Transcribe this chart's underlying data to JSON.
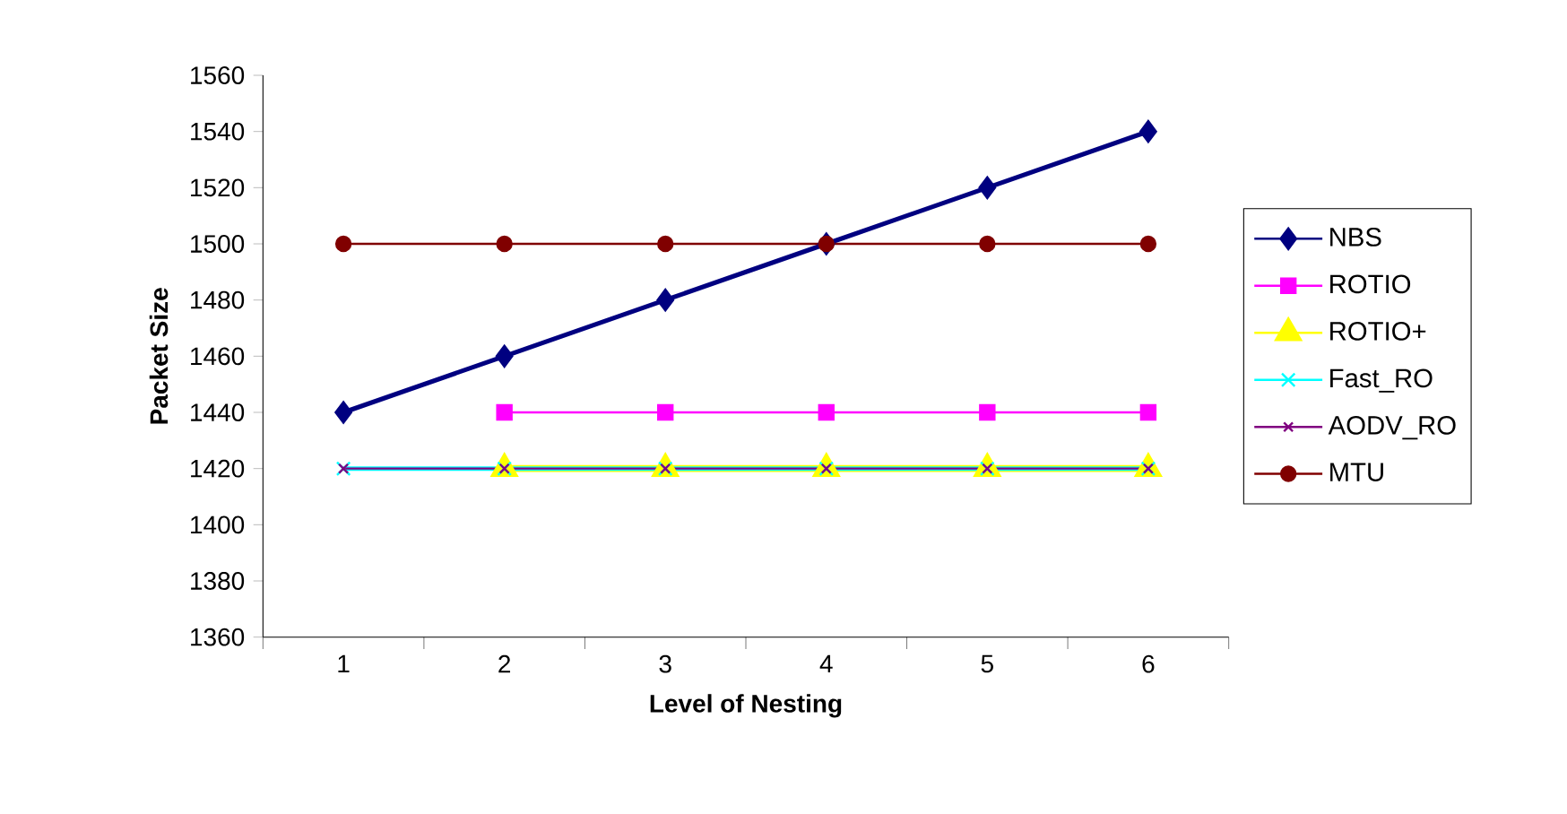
{
  "chart_data": {
    "type": "line",
    "xlabel": "Level of Nesting",
    "ylabel": "Packet Size",
    "categories": [
      "1",
      "2",
      "3",
      "4",
      "5",
      "6"
    ],
    "series": [
      {
        "name": "NBS",
        "color": "#000080",
        "marker": "diamond",
        "values": [
          1440,
          1460,
          1480,
          1500,
          1520,
          1540
        ]
      },
      {
        "name": "ROTIO",
        "color": "#ff00ff",
        "marker": "square",
        "values": [
          null,
          1440,
          1440,
          1440,
          1440,
          1440
        ]
      },
      {
        "name": "ROTIO+",
        "color": "#ffff00",
        "marker": "triangle",
        "values": [
          null,
          1420,
          1420,
          1420,
          1420,
          1420
        ]
      },
      {
        "name": "Fast_RO",
        "color": "#00ffff",
        "marker": "cross",
        "values": [
          1420,
          1420,
          1420,
          1420,
          1420,
          1420
        ]
      },
      {
        "name": "AODV_RO",
        "color": "#800080",
        "marker": "cross",
        "values": [
          1420,
          1420,
          1420,
          1420,
          1420,
          1420
        ]
      },
      {
        "name": "MTU",
        "color": "#800000",
        "marker": "circle",
        "values": [
          1500,
          1500,
          1500,
          1500,
          1500,
          1500
        ]
      }
    ],
    "ylim": [
      1360,
      1560
    ],
    "yticks": [
      1360,
      1380,
      1400,
      1420,
      1440,
      1460,
      1480,
      1500,
      1520,
      1540,
      1560
    ],
    "grid": false,
    "legend": "right",
    "line_style": "solid"
  }
}
